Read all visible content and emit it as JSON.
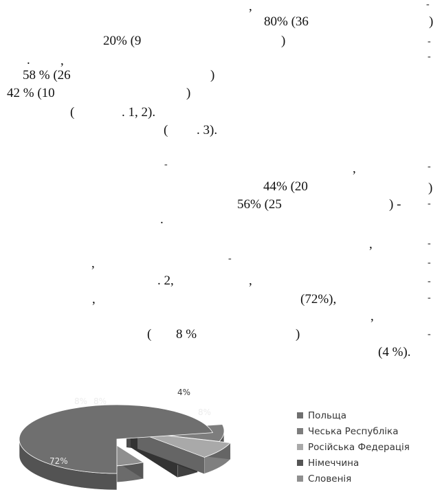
{
  "text": {
    "l1": ",",
    "l2": "80% (36",
    "l3": ")",
    "l4": "20% (9",
    "l5": ")",
    "l6": ".",
    "l7": ",",
    "l8": "58 % (26",
    "l9": ")",
    "l10": "42 % (10",
    "l11": ")",
    "l12": "(",
    "l13": ". 1, 2).",
    "l14": "(",
    "l15": ". 3).",
    "l16": ",",
    "l17": "44% (20",
    "l18": ")",
    "l19": "56% (25",
    "l20": ") -",
    "l21": ".",
    "l22": ",",
    "l23": ",",
    "l24": ". 2,",
    "l25": ",",
    "l26": ",",
    "l27": "(72%),",
    "l28": ",",
    "l29": "(",
    "l30": "8 %",
    "l31": ")",
    "l32": "(4 %).",
    "hyphen": "-"
  },
  "chart_data": {
    "type": "pie",
    "three_d": true,
    "categories": [
      "Польща",
      "Чеська Республіка",
      "Російська Федерація",
      "Німеччина",
      "Словенія"
    ],
    "values": [
      72,
      8,
      8,
      4,
      8
    ],
    "labels": [
      "72%",
      "8%",
      "8%",
      "4%",
      "8%"
    ],
    "colors": [
      "#6f6f6f",
      "#7d7d7d",
      "#a9a9a9",
      "#555555",
      "#8f8f8f"
    ],
    "legend_position": "right"
  }
}
